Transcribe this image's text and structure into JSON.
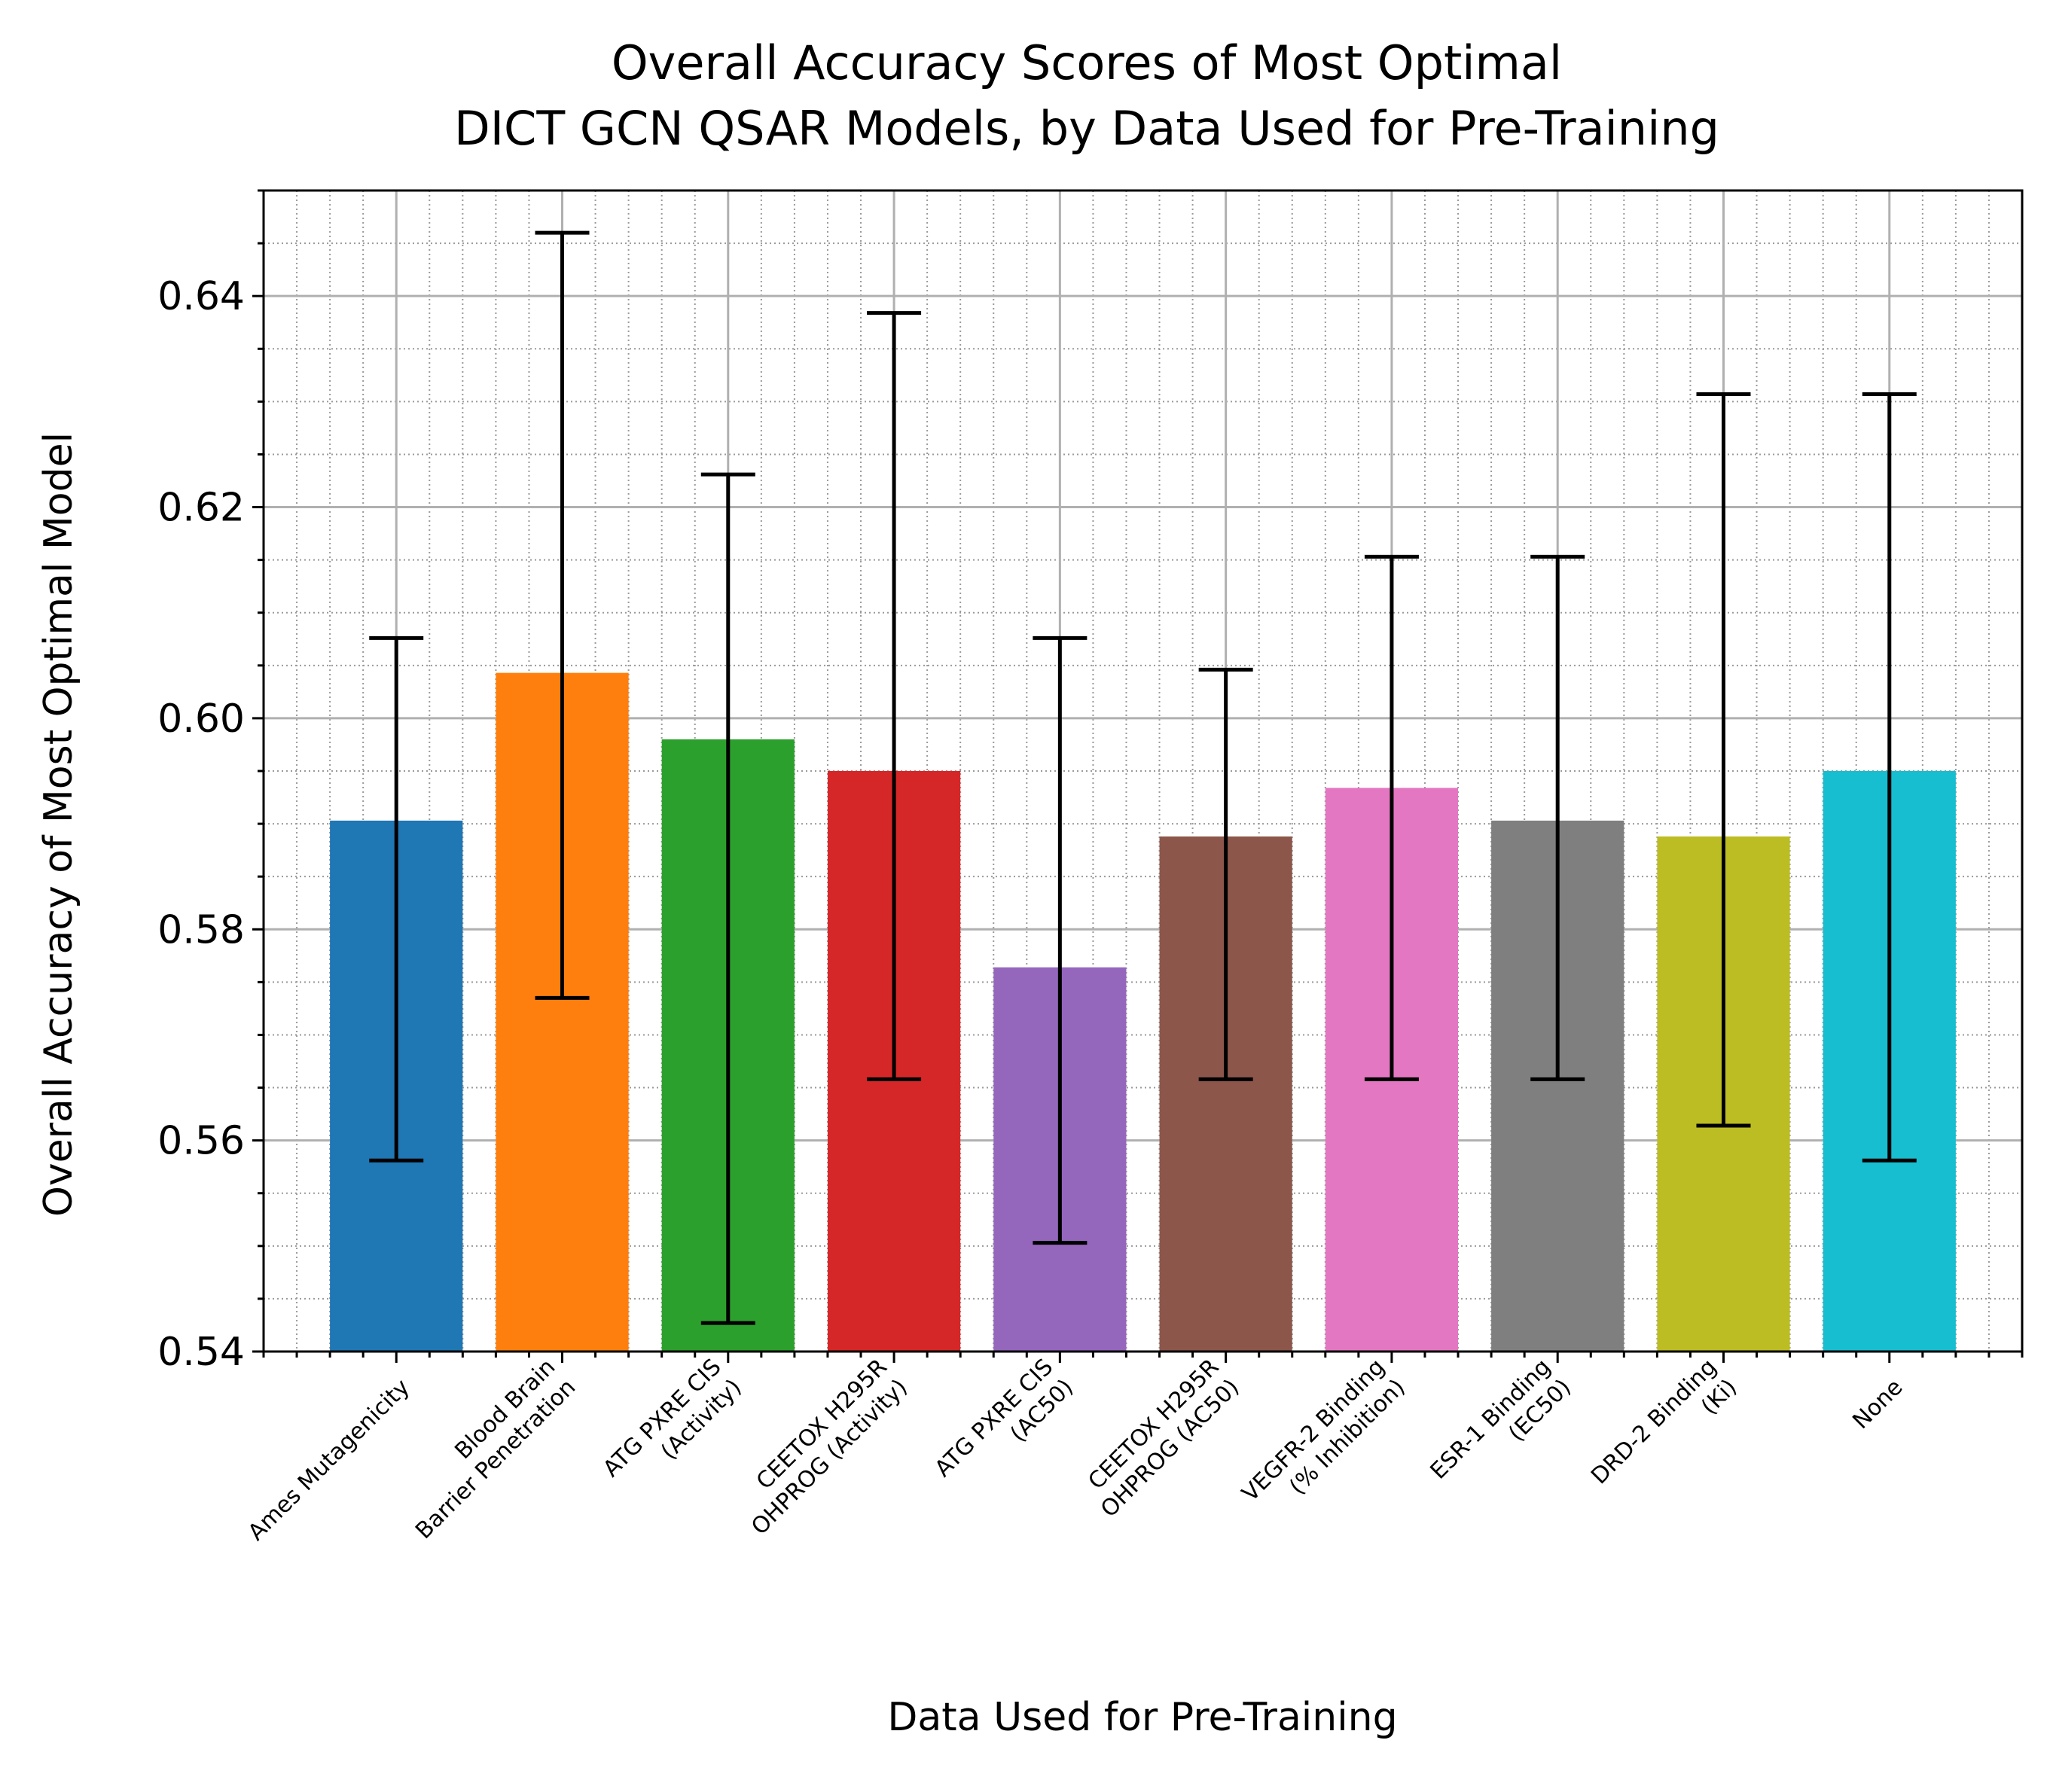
{
  "chart_data": {
    "type": "bar",
    "title": [
      "Overall Accuracy Scores of Most Optimal",
      "DICT GCN QSAR Models, by Data Used for Pre-Training"
    ],
    "xlabel": "Data Used for Pre-Training",
    "ylabel": "Overall Accuracy of Most Optimal Model",
    "ylim": [
      0.54,
      0.65
    ],
    "yticks": [
      0.54,
      0.56,
      0.58,
      0.6,
      0.62,
      0.64
    ],
    "ytick_labels": [
      "0.54",
      "0.56",
      "0.58",
      "0.60",
      "0.62",
      "0.64"
    ],
    "grid": "major and minor",
    "categories": [
      [
        "Ames Mutagenicity"
      ],
      [
        "Blood Brain",
        "Barrier Penetration"
      ],
      [
        "ATG PXRE CIS",
        "(Activity)"
      ],
      [
        "CEETOX H295R",
        "OHPROG (Activity)"
      ],
      [
        "ATG PXRE CIS",
        "(AC50)"
      ],
      [
        "CEETOX H295R",
        "OHPROG (AC50)"
      ],
      [
        "VEGFR-2 Binding",
        "(% Inhibition)"
      ],
      [
        "ESR-1 Binding",
        "(EC50)"
      ],
      [
        "DRD-2 Binding",
        "(Ki)"
      ],
      [
        "None"
      ]
    ],
    "values": [
      0.5903,
      0.6043,
      0.598,
      0.595,
      0.5764,
      0.5888,
      0.5934,
      0.5903,
      0.5888,
      0.595
    ],
    "error_low": [
      0.5581,
      0.5735,
      0.5427,
      0.5658,
      0.5503,
      0.5658,
      0.5658,
      0.5658,
      0.5614,
      0.5581
    ],
    "error_high": [
      0.6076,
      0.646,
      0.6231,
      0.6384,
      0.6076,
      0.6046,
      0.6153,
      0.6153,
      0.6307,
      0.6307
    ],
    "colors": [
      "#1f77b4",
      "#ff7f0e",
      "#2ca02c",
      "#d62728",
      "#9467bd",
      "#8c564b",
      "#e377c2",
      "#7f7f7f",
      "#bcbd22",
      "#17becf"
    ]
  }
}
